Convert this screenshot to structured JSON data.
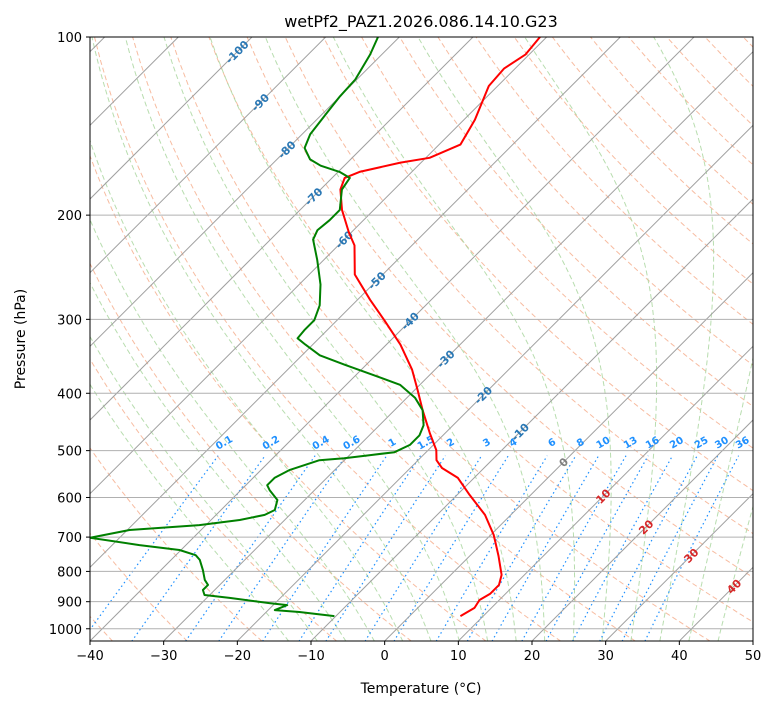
{
  "chart_data": {
    "type": "line",
    "subtype": "skew-t log-p diagram",
    "title": "wetPf2_PAZ1.2026.086.14.10.G23",
    "xlabel": "Temperature (°C)",
    "ylabel": "Pressure (hPa)",
    "xlim": [
      -40,
      50
    ],
    "ylim": [
      1050,
      100
    ],
    "x_ticks": [
      -40,
      -30,
      -20,
      -10,
      0,
      10,
      20,
      30,
      40,
      50
    ],
    "x_tick_labels": [
      "−40",
      "−30",
      "−20",
      "−10",
      "0",
      "10",
      "20",
      "30",
      "40",
      "50"
    ],
    "y_ticks": [
      100,
      200,
      300,
      400,
      500,
      600,
      700,
      800,
      900,
      1000
    ],
    "y_tick_labels": [
      "100",
      "200",
      "300",
      "400",
      "500",
      "600",
      "700",
      "800",
      "900",
      "1000"
    ],
    "grid": true,
    "colors": {
      "temperature": "#ff0000",
      "dewpoint": "#008000",
      "isotherm": "#a0a0a0",
      "dry_adiabat": "#f4a582",
      "moist_adiabat": "#a6d49b",
      "mixing_ratio": "#1e90ff"
    },
    "series": [
      {
        "name": "Temperature",
        "color": "#ff0000",
        "p": [
          952,
          922,
          894,
          873,
          843,
          811,
          753,
          694,
          642,
          594,
          556,
          535,
          519,
          499,
          467,
          427,
          395,
          365,
          331,
          301,
          278,
          252,
          225,
          214,
          196,
          181,
          173,
          169,
          163,
          160,
          152,
          138,
          121,
          113,
          107,
          100
        ],
        "T": [
          6.9,
          7.7,
          7.3,
          7.9,
          7.9,
          6.9,
          3.9,
          0.4,
          -3.5,
          -8.3,
          -12.2,
          -15.7,
          -17.5,
          -18.9,
          -22.1,
          -26.2,
          -29.6,
          -33.1,
          -38.1,
          -43.6,
          -48.3,
          -53.8,
          -57.8,
          -60.3,
          -64.3,
          -67.3,
          -68.3,
          -67.1,
          -62.8,
          -59.5,
          -57.1,
          -58.5,
          -61.2,
          -61.5,
          -60.5,
          -60.9
        ]
      },
      {
        "name": "Dewpoint",
        "color": "#008000",
        "p": [
          952,
          937,
          930,
          912,
          905,
          887,
          877,
          860,
          843,
          827,
          796,
          765,
          751,
          736,
          722,
          702,
          681,
          668,
          655,
          642,
          630,
          606,
          583,
          572,
          556,
          539,
          519,
          515,
          509,
          503,
          489,
          471,
          453,
          427,
          407,
          387,
          373,
          358,
          345,
          331,
          323,
          313,
          301,
          284,
          262,
          238,
          220,
          212,
          204,
          196,
          181,
          173,
          169,
          165,
          161,
          154,
          146,
          135,
          126,
          118,
          107,
          100
        ],
        "T": [
          -10.2,
          -15.5,
          -19.1,
          -18.1,
          -20.8,
          -26.9,
          -30.7,
          -31.6,
          -31.6,
          -32.7,
          -34.3,
          -36.1,
          -37.3,
          -40.2,
          -46.3,
          -54.0,
          -49.7,
          -40.9,
          -36.1,
          -33.4,
          -32.7,
          -33.7,
          -36.1,
          -37.1,
          -37.1,
          -36.1,
          -33.4,
          -30.3,
          -27.3,
          -24.3,
          -23.2,
          -23.2,
          -24.0,
          -26.2,
          -28.9,
          -32.7,
          -37.5,
          -42.9,
          -47.6,
          -51.0,
          -52.9,
          -53.1,
          -53.1,
          -54.4,
          -57.1,
          -60.9,
          -64.2,
          -64.9,
          -64.6,
          -64.6,
          -67.1,
          -67.6,
          -69.8,
          -73.2,
          -75.5,
          -77.8,
          -78.9,
          -79.5,
          -80.0,
          -80.2,
          -81.6,
          -82.9
        ]
      }
    ],
    "isotherm_labels": [
      {
        "T": -100,
        "p": 106,
        "text": "-100",
        "color": "#2a78b5"
      },
      {
        "T": -90,
        "p": 129,
        "text": "-90",
        "color": "#2a78b5"
      },
      {
        "T": -80,
        "p": 155,
        "text": "-80",
        "color": "#2a78b5"
      },
      {
        "T": -70,
        "p": 186,
        "text": "-70",
        "color": "#2a78b5"
      },
      {
        "T": -60,
        "p": 220,
        "text": "-60",
        "color": "#2a78b5"
      },
      {
        "T": -50,
        "p": 258,
        "text": "-50",
        "color": "#2a78b5"
      },
      {
        "T": -40,
        "p": 302,
        "text": "-40",
        "color": "#2a78b5"
      },
      {
        "T": -30,
        "p": 350,
        "text": "-30",
        "color": "#2a78b5"
      },
      {
        "T": -20,
        "p": 403,
        "text": "-20",
        "color": "#2a78b5"
      },
      {
        "T": -10,
        "p": 465,
        "text": "-10",
        "color": "#2a78b5"
      },
      {
        "T": 0,
        "p": 523,
        "text": "0",
        "color": "#808080"
      },
      {
        "T": 10,
        "p": 597,
        "text": "10",
        "color": "#d62728"
      },
      {
        "T": 20,
        "p": 673,
        "text": "20",
        "color": "#d62728"
      },
      {
        "T": 30,
        "p": 752,
        "text": "30",
        "color": "#d62728"
      },
      {
        "T": 40,
        "p": 848,
        "text": "40",
        "color": "#d62728"
      }
    ],
    "mixing_ratio_lines": {
      "values": [
        0.1,
        0.2,
        0.4,
        0.6,
        1,
        1.5,
        2,
        3,
        4,
        6,
        8,
        10,
        13,
        16,
        20,
        25,
        30,
        36
      ],
      "labels": [
        "0.1",
        "0.2",
        "0.4",
        "0.6",
        "1",
        "1.5",
        "2",
        "3",
        "4",
        "6",
        "8",
        "10",
        "13",
        "16",
        "20",
        "25",
        "30",
        "36"
      ],
      "top_pressure": 510
    },
    "dry_adiabats_theta_K": [
      223,
      233,
      243,
      253,
      263,
      273,
      283,
      293,
      303,
      313,
      323,
      333,
      343,
      353,
      363,
      373,
      383,
      393,
      403,
      413,
      423,
      433,
      443,
      453,
      463,
      473,
      483
    ],
    "moist_adiabats_T1000": [
      -16,
      -12,
      -8,
      -4,
      0,
      4,
      8,
      12,
      16,
      20,
      24,
      28,
      32,
      36,
      40,
      44
    ]
  }
}
